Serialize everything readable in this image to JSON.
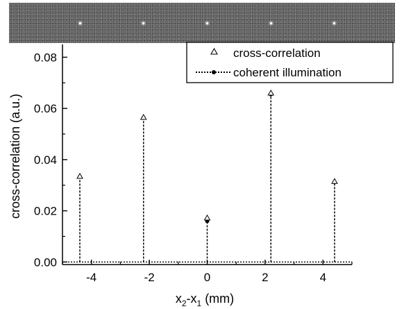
{
  "chart_data": {
    "type": "scatter",
    "xlabel": "x2-x1 (mm)",
    "xlabel_parts": {
      "a": "x",
      "a_sub": "2",
      "sep": "-x",
      "b_sub": "1",
      "unit": " (mm)"
    },
    "ylabel": "cross-correlation  (a.u.)",
    "xlim": [
      -5,
      5
    ],
    "ylim": [
      -0.001,
      0.085
    ],
    "x_ticks": [
      -4,
      -2,
      0,
      2,
      4
    ],
    "x_tick_labels": [
      "-4",
      "-2",
      "0",
      "2",
      "4"
    ],
    "y_ticks": [
      0.0,
      0.02,
      0.04,
      0.06,
      0.08
    ],
    "y_tick_labels": [
      "0.00",
      "0.02",
      "0.04",
      "0.06",
      "0.08"
    ],
    "legend_position": "top-right",
    "baseline": 0.0,
    "series": [
      {
        "name": "cross-correlation",
        "marker": "open-triangle",
        "x": [
          -4.4,
          -2.2,
          0.0,
          2.2,
          4.4
        ],
        "y": [
          0.0335,
          0.0565,
          0.0172,
          0.066,
          0.0315
        ]
      },
      {
        "name": "coherent illumination",
        "marker": "filled-circle-dotted-stem",
        "x": [
          -4.4,
          -2.2,
          0.0,
          2.2,
          4.4
        ],
        "y": [
          0.0333,
          0.0563,
          0.016,
          0.0655,
          0.0312
        ]
      }
    ],
    "image_strip": {
      "spot_x": [
        -4.4,
        -2.2,
        0.0,
        2.2,
        4.4
      ]
    }
  }
}
